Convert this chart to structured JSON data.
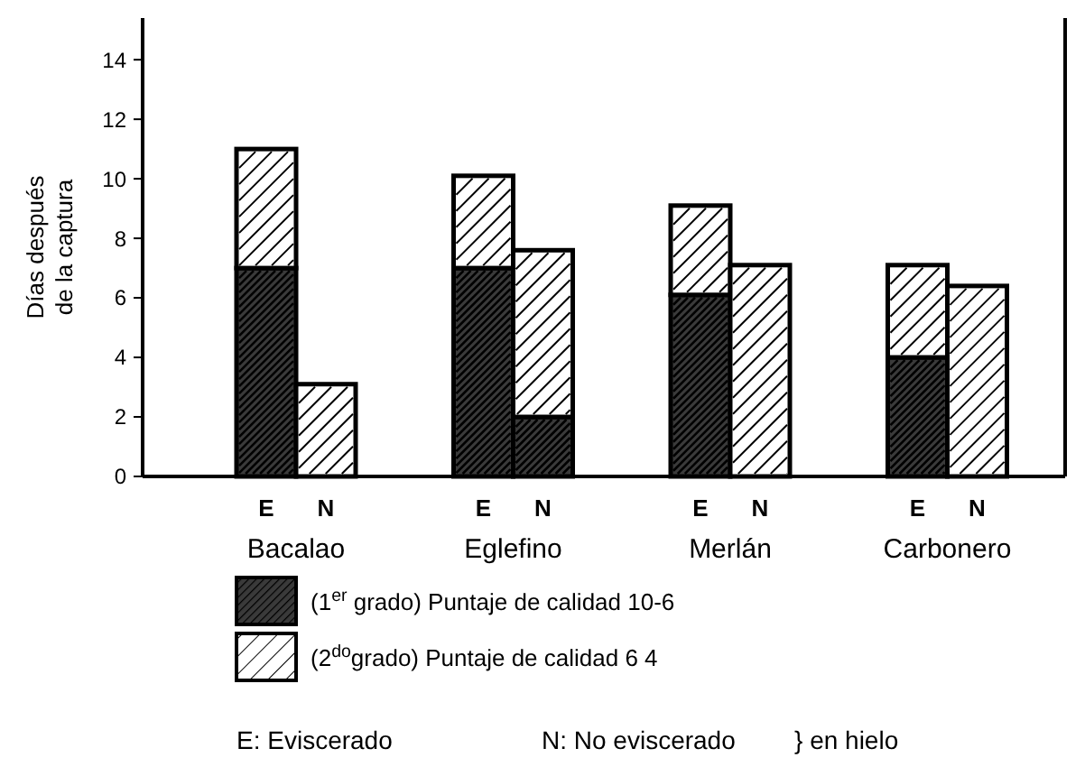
{
  "chart_data": {
    "type": "bar",
    "stacked": true,
    "ylabel": "Días después de la captura",
    "categories": [
      "E",
      "N",
      "E",
      "N",
      "E",
      "N",
      "E",
      "N"
    ],
    "series": [
      {
        "name": "(1$^{er}$ grado) Puntaje de calidad 10-6",
        "color": "#3a3a3a",
        "values": [
          7,
          null,
          7,
          2,
          6.1,
          null,
          4,
          null
        ]
      },
      {
        "name": "(2$^{do}$grado) Puntaje de calidad 6 4",
        "color": "#ffffff",
        "values": [
          4,
          3.1,
          3.1,
          5.6,
          3,
          7.1,
          3.1,
          6.4
        ]
      }
    ],
    "ylim": [
      0,
      15.4
    ],
    "yticks": [
      0,
      2,
      4,
      6,
      8,
      10,
      12,
      14
    ],
    "legend": "bottom",
    "annotations": [
      "Bacalao",
      "Eglefino",
      "Merlán",
      "Carbonero",
      "E: Eviscerado",
      "N: No eviscerado",
      "} en hielo"
    ]
  }
}
